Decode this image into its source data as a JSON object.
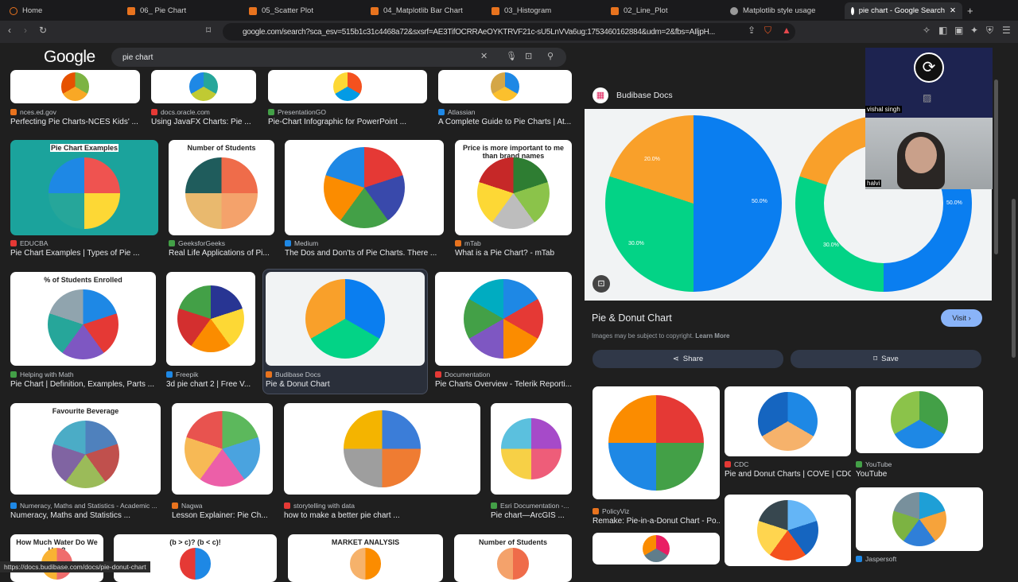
{
  "tabs": [
    {
      "label": "Home",
      "icon": "brave-home-icon"
    },
    {
      "label": "06_ Pie Chart",
      "icon": "notebook-icon"
    },
    {
      "label": "05_Scatter Plot",
      "icon": "notebook-icon"
    },
    {
      "label": "04_Matplotlib Bar Chart",
      "icon": "notebook-icon"
    },
    {
      "label": "03_Histogram",
      "icon": "notebook-icon"
    },
    {
      "label": "02_Line_Plot",
      "icon": "notebook-icon"
    },
    {
      "label": "Matplotlib style usage",
      "icon": "chatgpt-icon"
    },
    {
      "label": "pie chart - Google Search",
      "icon": "google-icon",
      "active": true
    }
  ],
  "address": {
    "url": "google.com/search?sca_esv=515b1c31c4468a72&sxsrf=AE3TifOCRRAeOYKTRVF21c-sU5LnVVa6ug:1753460162884&udm=2&fbs=AIljpH...",
    "shield_count": "2"
  },
  "google": {
    "logo": "Google",
    "query": "pie chart"
  },
  "results": [
    [
      {
        "source": "nces.ed.gov",
        "title": "Perfecting Pie Charts-NCES Kids' ...",
        "colors": [
          "#7cb342",
          "#f9a825",
          "#e65100"
        ]
      },
      {
        "source": "docs.oracle.com",
        "title": "Using JavaFX Charts: Pie ...",
        "colors": [
          "#26a69a",
          "#c0ca33",
          "#1e88e5"
        ]
      },
      {
        "source": "PresentationGO",
        "title": "Pie-Chart Infographic for PowerPoint ...",
        "colors": [
          "#f4511e",
          "#039be5",
          "#fdd835"
        ]
      },
      {
        "source": "Atlassian",
        "title": "A Complete Guide to Pie Charts | At...",
        "colors": [
          "#1e88e5",
          "#fbc02d",
          "#d4a646"
        ]
      }
    ],
    [
      {
        "source": "EDUCBA",
        "title": "Pie Chart Examples | Types of Pie ...",
        "thumb_title": "Pie Chart Examples",
        "colors": [
          "#ef5350",
          "#fdd835",
          "#26a69a",
          "#1e88e5"
        ]
      },
      {
        "source": "GeeksforGeeks",
        "title": "Real Life Applications of Pi...",
        "thumb_title": "Number of Students",
        "colors": [
          "#ef6c4a",
          "#f4a26b",
          "#e9b96e",
          "#1f5c5c"
        ]
      },
      {
        "source": "Medium",
        "title": "The Dos and Don'ts of Pie Charts. There ...",
        "colors": [
          "#e53935",
          "#3949ab",
          "#43a047",
          "#fb8c00",
          "#1e88e5"
        ]
      },
      {
        "source": "mTab",
        "title": "What is a Pie Chart? - mTab",
        "thumb_title": "Price is more important to me than brand names",
        "colors": [
          "#2e7d32",
          "#8bc34a",
          "#bdbdbd",
          "#fdd835",
          "#c62828"
        ]
      }
    ],
    [
      {
        "source": "Helping with Math",
        "title": "Pie Chart | Definition, Examples, Parts ...",
        "thumb_title": "% of Students Enrolled",
        "colors": [
          "#1e88e5",
          "#e53935",
          "#7e57c2",
          "#26a69a",
          "#90a4ae"
        ]
      },
      {
        "source": "Freepik",
        "title": "3d pie chart 2 | Free V...",
        "colors": [
          "#283593",
          "#fdd835",
          "#fb8c00",
          "#d32f2f",
          "#43a047"
        ]
      },
      {
        "source": "Budibase Docs",
        "title": "Pie & Donut Chart",
        "colors": [
          "#0a7ef0",
          "#03d386",
          "#f9a02a"
        ]
      },
      {
        "source": "Documentation",
        "title": "Pie Charts Overview - Telerik Reporti...",
        "colors": [
          "#1e88e5",
          "#e53935",
          "#fb8c00",
          "#7e57c2",
          "#43a047",
          "#00acc1"
        ]
      }
    ],
    [
      {
        "source": "Numeracy, Maths and Statistics - Academic ...",
        "title": "Numeracy, Maths and Statistics ...",
        "thumb_title": "Favourite Beverage",
        "colors": [
          "#4f81bd",
          "#c0504d",
          "#9bbb59",
          "#8064a2",
          "#4bacc6"
        ]
      },
      {
        "source": "Nagwa",
        "title": "Lesson Explainer: Pie Ch...",
        "colors": [
          "#5cb85c",
          "#4aa3df",
          "#ec5fa8",
          "#f7b955",
          "#e8534f"
        ]
      },
      {
        "source": "storytelling with data",
        "title": "how to make a better pie chart ...",
        "colors": [
          "#3b7dd8",
          "#ef7c32",
          "#9e9e9e",
          "#f4b400"
        ]
      },
      {
        "source": "Esri Documentation -...",
        "title": "Pie chart—ArcGIS ...",
        "colors": [
          "#a64ac9",
          "#ee5d79",
          "#f7d046",
          "#5bc0de"
        ]
      }
    ],
    [
      {
        "thumb_title": "How Much Water Do We Use?",
        "colors": [
          "#ef6c6c",
          "#f9b233"
        ]
      },
      {
        "thumb_title": "(b > c)?  (b < c)!",
        "colors": [
          "#1e88e5",
          "#e53935"
        ]
      },
      {
        "thumb_title": "MARKET ANALYSIS",
        "colors": [
          "#fb8c00",
          "#f6b26b"
        ]
      },
      {
        "thumb_title": "Number of Students",
        "colors": [
          "#ef6c4a",
          "#f4a26b"
        ]
      }
    ]
  ],
  "panel": {
    "source": "Budibase Docs",
    "title": "Pie & Donut Chart",
    "visit": "Visit",
    "copyright": "Images may be subject to copyright.",
    "learn_more": "Learn More",
    "share": "Share",
    "save": "Save",
    "pie_labels": [
      "50.0%",
      "30.0%",
      "20.0%"
    ],
    "colors": {
      "blue": "#0a7ef0",
      "green": "#03d386",
      "orange": "#f9a02a"
    },
    "related": [
      {
        "source": "PolicyViz",
        "title": "Remake: Pie-in-a-Donut Chart - Po..."
      },
      {
        "source": "CDC",
        "title": "Pie and Donut Charts | COVE | CDC"
      },
      {
        "source": "YouTube",
        "title": "YouTube"
      },
      {
        "source": "Jaspersoft",
        "title": ""
      }
    ]
  },
  "webcam": {
    "presenter": "vishal singh",
    "participant": "halvi"
  },
  "status_url": "https://docs.budibase.com/docs/pie-donut-chart"
}
